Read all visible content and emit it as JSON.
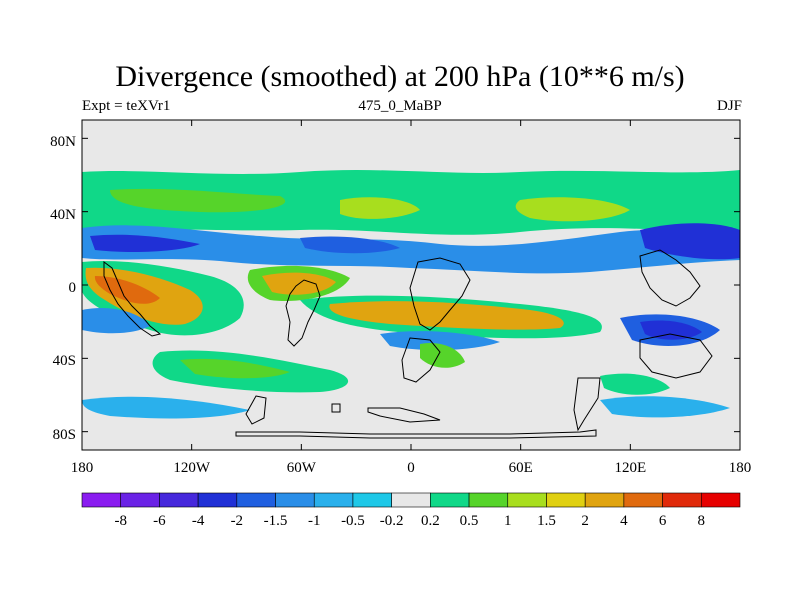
{
  "header": {
    "title": "Divergence (smoothed) at 200 hPa (10**6 m/s)",
    "left_label": "Expt = teXVr1",
    "center_label": "475_0_MaBP",
    "right_label": "DJF"
  },
  "axes": {
    "x_ticks": [
      "180",
      "120W",
      "60W",
      "0",
      "60E",
      "120E",
      "180"
    ],
    "y_ticks": [
      "80N",
      "40N",
      "0",
      "40S",
      "80S"
    ],
    "lon_range": [
      -180,
      180
    ],
    "lat_range": [
      -90,
      90
    ]
  },
  "colorbar": {
    "labels": [
      "-8",
      "-6",
      "-4",
      "-2",
      "-1.5",
      "-1",
      "-0.5",
      "-0.2",
      "0.2",
      "0.5",
      "1",
      "1.5",
      "2",
      "4",
      "6",
      "8"
    ],
    "colors": [
      "#8a1cf0",
      "#6a22e6",
      "#4628dc",
      "#2030d6",
      "#1f5fe0",
      "#2a8ee8",
      "#2ab0ec",
      "#1ec8e8",
      "#e8e8e8",
      "#10d888",
      "#56d42a",
      "#a8de1e",
      "#e0d012",
      "#e0a410",
      "#e06a0e",
      "#e02a0a",
      "#e60000"
    ]
  },
  "colors": {
    "background_field": "#e8e8e8",
    "coastline": "#000000"
  }
}
